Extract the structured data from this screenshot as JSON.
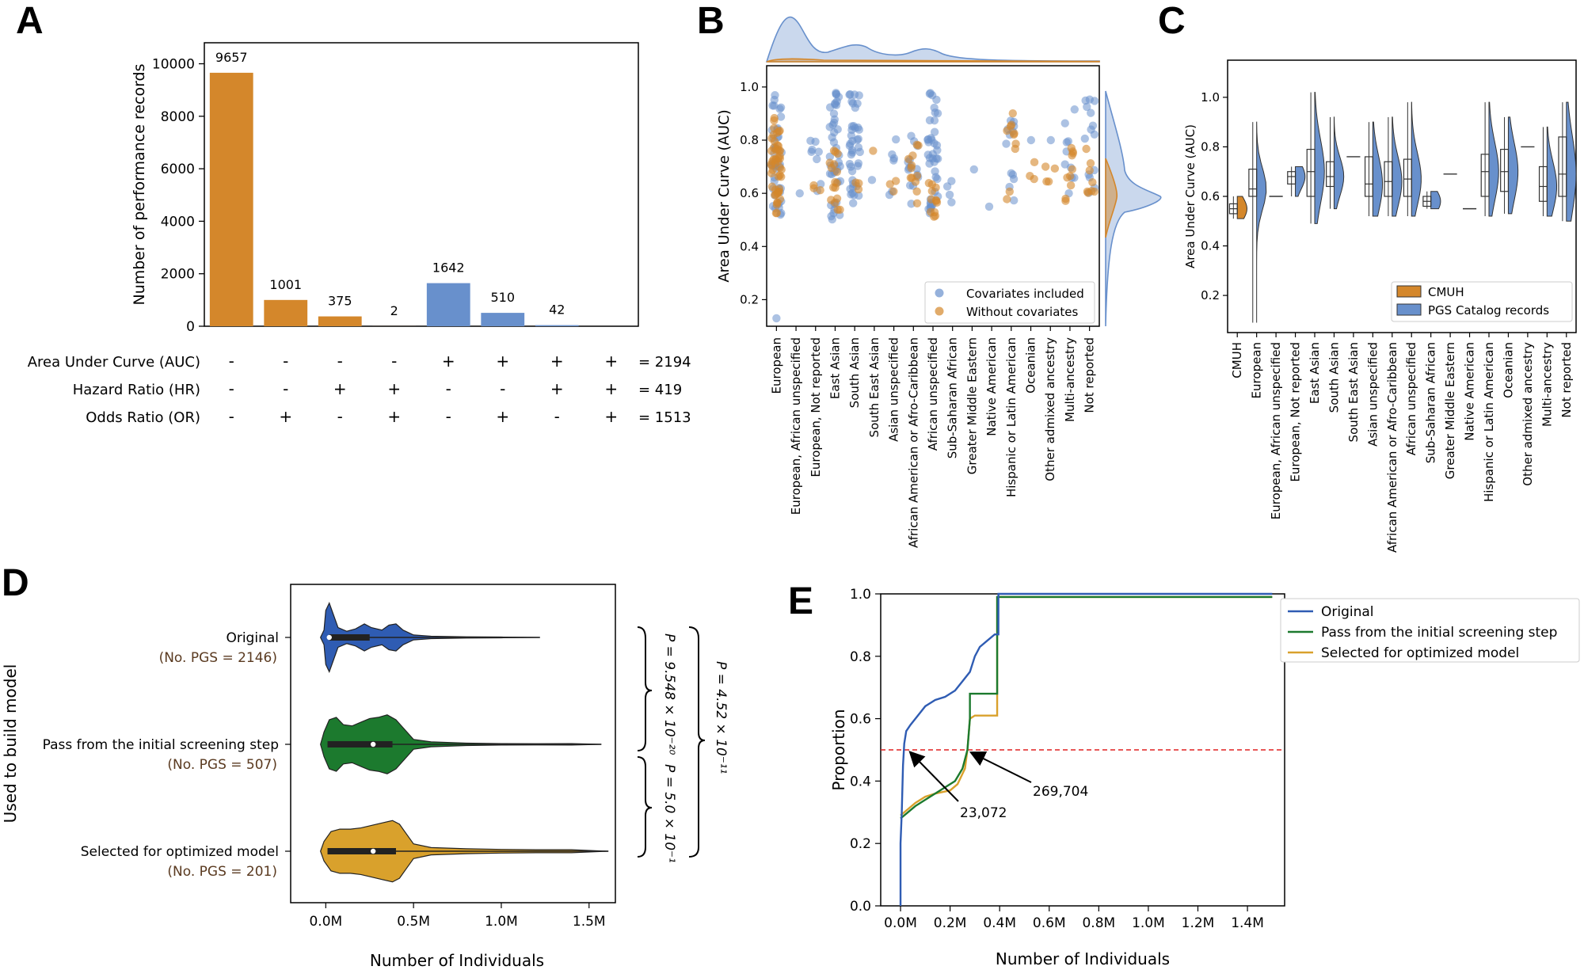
{
  "panel_labels": {
    "A": "A",
    "B": "B",
    "C": "C",
    "D": "D",
    "E": "E"
  },
  "colors": {
    "orange": "#d4872b",
    "blue": "#6890cc",
    "dark_blue": "#2f5cb3",
    "green": "#1c7a2e",
    "gold": "#d9a12c",
    "red": "#e02020",
    "cmuh": "#d4872b"
  },
  "chart_data": [
    {
      "id": "A",
      "type": "bar",
      "ylabel": "Number of performance records",
      "yticks": [
        0,
        2000,
        4000,
        6000,
        8000,
        10000
      ],
      "ylim": [
        0,
        10800
      ],
      "values": [
        9657,
        1001,
        375,
        2,
        1642,
        510,
        42,
        0
      ],
      "labels": [
        "9657",
        "1001",
        "375",
        "2",
        "1642",
        "510",
        "42",
        ""
      ],
      "color_group": [
        "orange",
        "orange",
        "orange",
        "orange",
        "blue",
        "blue",
        "blue",
        "blue"
      ],
      "matrix_rows": [
        {
          "label": "Area Under Curve (AUC)",
          "signs": [
            "-",
            "-",
            "-",
            "-",
            "+",
            "+",
            "+",
            "+"
          ],
          "total": "= 2194"
        },
        {
          "label": "Hazard Ratio (HR)",
          "signs": [
            "-",
            "-",
            "+",
            "+",
            "-",
            "-",
            "+",
            "+"
          ],
          "total": "= 419"
        },
        {
          "label": "Odds Ratio (OR)",
          "signs": [
            "-",
            "+",
            "-",
            "+",
            "-",
            "+",
            "-",
            "+"
          ],
          "total": "= 1513"
        }
      ]
    },
    {
      "id": "B",
      "type": "scatter",
      "ylabel": "Area Under Curve (AUC)",
      "yticks": [
        "0.2",
        "0.4",
        "0.6",
        "0.8",
        "1.0"
      ],
      "ylim": [
        0.1,
        1.08
      ],
      "categories": [
        "European",
        "European, African unspecified",
        "European, Not reported",
        "East Asian",
        "South Asian",
        "South East Asian",
        "Asian unspecified",
        "African American or Afro-Caribbean",
        "African unspecified",
        "Sub-Saharan African",
        "Greater Middle Eastern",
        "Native American",
        "Hispanic or Latin American",
        "Oceanian",
        "Other admixed ancestry",
        "Multi-ancestry",
        "Not reported"
      ],
      "legend": [
        "Covariates included",
        "Without covariates"
      ],
      "series": [
        {
          "name": "Covariates included",
          "ranges": [
            [
              0.5,
              0.97,
              40
            ],
            [
              0.6,
              0.6,
              1
            ],
            [
              0.58,
              0.8,
              8
            ],
            [
              0.5,
              1.0,
              40
            ],
            [
              0.53,
              0.98,
              40
            ],
            [
              0.65,
              0.65,
              1
            ],
            [
              0.58,
              0.86,
              6
            ],
            [
              0.56,
              0.86,
              14
            ],
            [
              0.52,
              0.99,
              40
            ],
            [
              0.56,
              0.65,
              4
            ],
            [
              0.69,
              0.69,
              1
            ],
            [
              0.55,
              0.55,
              1
            ],
            [
              0.52,
              0.88,
              12
            ],
            [
              0.8,
              0.8,
              1
            ],
            [
              0.8,
              0.8,
              1
            ],
            [
              0.58,
              0.93,
              10
            ],
            [
              0.58,
              0.96,
              14
            ]
          ],
          "outliers": [
            [
              0,
              0.13
            ]
          ]
        },
        {
          "name": "Without covariates",
          "ranges": [
            [
              0.52,
              0.9,
              50
            ],
            [
              null,
              null,
              0
            ],
            [
              0.58,
              0.68,
              3
            ],
            [
              0.52,
              0.8,
              16
            ],
            [
              0.6,
              0.65,
              3
            ],
            [
              0.76,
              0.76,
              1
            ],
            [
              0.6,
              0.68,
              3
            ],
            [
              0.52,
              0.87,
              12
            ],
            [
              0.5,
              0.64,
              12
            ],
            [
              null,
              null,
              0
            ],
            [
              null,
              null,
              0
            ],
            [
              null,
              null,
              0
            ],
            [
              0.52,
              0.94,
              10
            ],
            [
              0.6,
              0.8,
              3
            ],
            [
              0.58,
              0.78,
              4
            ],
            [
              0.55,
              0.83,
              10
            ],
            [
              0.58,
              0.9,
              8
            ]
          ],
          "outliers": []
        }
      ]
    },
    {
      "id": "C",
      "type": "violin",
      "ylabel": "Area Under Curve (AUC)",
      "yticks": [
        "0.2",
        "0.4",
        "0.6",
        "0.8",
        "1.0"
      ],
      "ylim": [
        0.05,
        1.15
      ],
      "categories": [
        "CMUH",
        "European",
        "European, African unspecified",
        "European, Not reported",
        "East Asian",
        "South Asian",
        "South East Asian",
        "Asian unspecified",
        "African American or Afro-Caribbean",
        "African unspecified",
        "Sub-Saharan African",
        "Greater Middle Eastern",
        "Native American",
        "Hispanic or Latin American",
        "Oceanian",
        "Other admixed ancestry",
        "Multi-ancestry",
        "Not reported"
      ],
      "legend": [
        "CMUH",
        "PGS Catalog records"
      ],
      "boxes": [
        [
          0.51,
          0.53,
          0.55,
          0.57,
          0.6
        ],
        [
          0.09,
          0.6,
          0.63,
          0.71,
          0.9
        ],
        [
          0.6,
          0.6,
          0.6,
          0.6,
          0.6
        ],
        [
          0.6,
          0.65,
          0.68,
          0.7,
          0.72
        ],
        [
          0.49,
          0.6,
          0.7,
          0.79,
          1.02
        ],
        [
          0.55,
          0.64,
          0.68,
          0.74,
          0.92
        ],
        [
          0.76,
          0.76,
          0.76,
          0.76,
          0.76
        ],
        [
          0.52,
          0.6,
          0.65,
          0.76,
          0.9
        ],
        [
          0.52,
          0.6,
          0.66,
          0.74,
          0.92
        ],
        [
          0.52,
          0.6,
          0.67,
          0.75,
          0.98
        ],
        [
          0.55,
          0.56,
          0.58,
          0.6,
          0.62
        ],
        [
          0.69,
          0.69,
          0.69,
          0.69,
          0.69
        ],
        [
          0.55,
          0.55,
          0.55,
          0.55,
          0.55
        ],
        [
          0.52,
          0.6,
          0.7,
          0.77,
          0.98
        ],
        [
          0.53,
          0.62,
          0.7,
          0.79,
          0.92
        ],
        [
          0.8,
          0.8,
          0.8,
          0.8,
          0.8
        ],
        [
          0.52,
          0.58,
          0.64,
          0.72,
          0.88
        ],
        [
          0.5,
          0.6,
          0.69,
          0.84,
          0.98
        ]
      ]
    },
    {
      "id": "D",
      "type": "violin",
      "xlabel": "Number of Individuals",
      "ylabel": "Used to build model",
      "xticks": [
        "0.0M",
        "0.5M",
        "1.0M",
        "1.5M"
      ],
      "xlim": [
        -0.2,
        1.65
      ],
      "groups": [
        {
          "name": "Original",
          "sub": "(No. PGS = 2146)",
          "color": "dark_blue",
          "median": 0.02,
          "q1": 0.02,
          "q3": 0.25,
          "max": 1.22,
          "density": [
            [
              -0.03,
              0
            ],
            [
              -0.01,
              6
            ],
            [
              0.0,
              22
            ],
            [
              0.02,
              28
            ],
            [
              0.04,
              20
            ],
            [
              0.07,
              8
            ],
            [
              0.12,
              5
            ],
            [
              0.17,
              7
            ],
            [
              0.22,
              11
            ],
            [
              0.26,
              8
            ],
            [
              0.32,
              6
            ],
            [
              0.36,
              10
            ],
            [
              0.4,
              11
            ],
            [
              0.44,
              6
            ],
            [
              0.5,
              2
            ],
            [
              0.6,
              1
            ],
            [
              0.8,
              0.5
            ],
            [
              1.0,
              0.3
            ],
            [
              1.22,
              0
            ]
          ]
        },
        {
          "name": "Pass from the initial screening step",
          "sub": "(No. PGS = 507)",
          "color": "green",
          "median": 0.27,
          "q1": 0.01,
          "q3": 0.38,
          "max": 1.57,
          "density": [
            [
              -0.03,
              0
            ],
            [
              -0.01,
              10
            ],
            [
              0.02,
              20
            ],
            [
              0.06,
              22
            ],
            [
              0.1,
              16
            ],
            [
              0.15,
              15
            ],
            [
              0.2,
              18
            ],
            [
              0.25,
              21
            ],
            [
              0.3,
              22
            ],
            [
              0.35,
              24
            ],
            [
              0.4,
              20
            ],
            [
              0.45,
              12
            ],
            [
              0.5,
              4
            ],
            [
              0.6,
              2
            ],
            [
              0.8,
              1
            ],
            [
              1.0,
              0.6
            ],
            [
              1.2,
              0.5
            ],
            [
              1.4,
              0.6
            ],
            [
              1.57,
              0
            ]
          ]
        },
        {
          "name": "Selected for optimized model",
          "sub": "(No. PGS = 201)",
          "color": "gold",
          "median": 0.27,
          "q1": 0.01,
          "q3": 0.4,
          "max": 1.61,
          "density": [
            [
              -0.03,
              0
            ],
            [
              -0.01,
              8
            ],
            [
              0.03,
              16
            ],
            [
              0.08,
              18
            ],
            [
              0.14,
              18
            ],
            [
              0.2,
              19
            ],
            [
              0.26,
              21
            ],
            [
              0.32,
              23
            ],
            [
              0.38,
              25
            ],
            [
              0.42,
              22
            ],
            [
              0.46,
              14
            ],
            [
              0.5,
              6
            ],
            [
              0.6,
              3
            ],
            [
              0.8,
              2
            ],
            [
              1.0,
              1.5
            ],
            [
              1.2,
              1.2
            ],
            [
              1.4,
              1.2
            ],
            [
              1.61,
              0
            ]
          ]
        }
      ],
      "pvalues": [
        "P = 9.548 × 10⁻²⁰",
        "P = 5.0 × 10⁻¹",
        "P = 4.52 × 10⁻¹¹"
      ]
    },
    {
      "id": "E",
      "type": "line",
      "xlabel": "Number of Individuals",
      "ylabel": "Proportion",
      "xticks": [
        "0.0M",
        "0.2M",
        "0.4M",
        "0.6M",
        "0.8M",
        "1.0M",
        "1.2M",
        "1.4M"
      ],
      "yticks": [
        "0.0",
        "0.2",
        "0.4",
        "0.6",
        "0.8",
        "1.0"
      ],
      "xlim": [
        -0.08,
        1.55
      ],
      "ylim": [
        0,
        1
      ],
      "threshold": 0.5,
      "series": [
        {
          "name": "Original",
          "color": "dark_blue",
          "points": [
            [
              0.0,
              0.0
            ],
            [
              0.0,
              0.2
            ],
            [
              0.005,
              0.3
            ],
            [
              0.01,
              0.45
            ],
            [
              0.015,
              0.52
            ],
            [
              0.023,
              0.56
            ],
            [
              0.04,
              0.58
            ],
            [
              0.06,
              0.6
            ],
            [
              0.08,
              0.62
            ],
            [
              0.1,
              0.64
            ],
            [
              0.14,
              0.66
            ],
            [
              0.18,
              0.67
            ],
            [
              0.22,
              0.69
            ],
            [
              0.25,
              0.72
            ],
            [
              0.28,
              0.75
            ],
            [
              0.3,
              0.8
            ],
            [
              0.32,
              0.83
            ],
            [
              0.35,
              0.85
            ],
            [
              0.38,
              0.87
            ],
            [
              0.395,
              0.87
            ],
            [
              0.395,
              1.0
            ],
            [
              1.5,
              1.0
            ]
          ]
        },
        {
          "name": "Pass from the initial screening step",
          "color": "green",
          "points": [
            [
              0.0,
              0.28
            ],
            [
              0.03,
              0.3
            ],
            [
              0.06,
              0.32
            ],
            [
              0.1,
              0.34
            ],
            [
              0.14,
              0.36
            ],
            [
              0.18,
              0.38
            ],
            [
              0.22,
              0.4
            ],
            [
              0.25,
              0.44
            ],
            [
              0.27,
              0.5
            ],
            [
              0.28,
              0.6
            ],
            [
              0.28,
              0.68
            ],
            [
              0.39,
              0.68
            ],
            [
              0.39,
              0.99
            ],
            [
              1.5,
              0.99
            ]
          ]
        },
        {
          "name": "Selected for optimized model",
          "color": "gold",
          "points": [
            [
              0.0,
              0.29
            ],
            [
              0.03,
              0.31
            ],
            [
              0.06,
              0.33
            ],
            [
              0.1,
              0.35
            ],
            [
              0.14,
              0.36
            ],
            [
              0.2,
              0.37
            ],
            [
              0.23,
              0.39
            ],
            [
              0.26,
              0.44
            ],
            [
              0.27,
              0.5
            ],
            [
              0.28,
              0.6
            ],
            [
              0.3,
              0.61
            ],
            [
              0.39,
              0.61
            ],
            [
              0.39,
              0.99
            ],
            [
              1.5,
              0.99
            ]
          ]
        }
      ],
      "annotations": [
        {
          "label": "23,072",
          "x": 0.023,
          "y": 0.5
        },
        {
          "label": "269,704",
          "x": 0.27,
          "y": 0.5
        }
      ],
      "legend": [
        "Original",
        "Pass from the initial screening step",
        "Selected for optimized model"
      ]
    }
  ]
}
